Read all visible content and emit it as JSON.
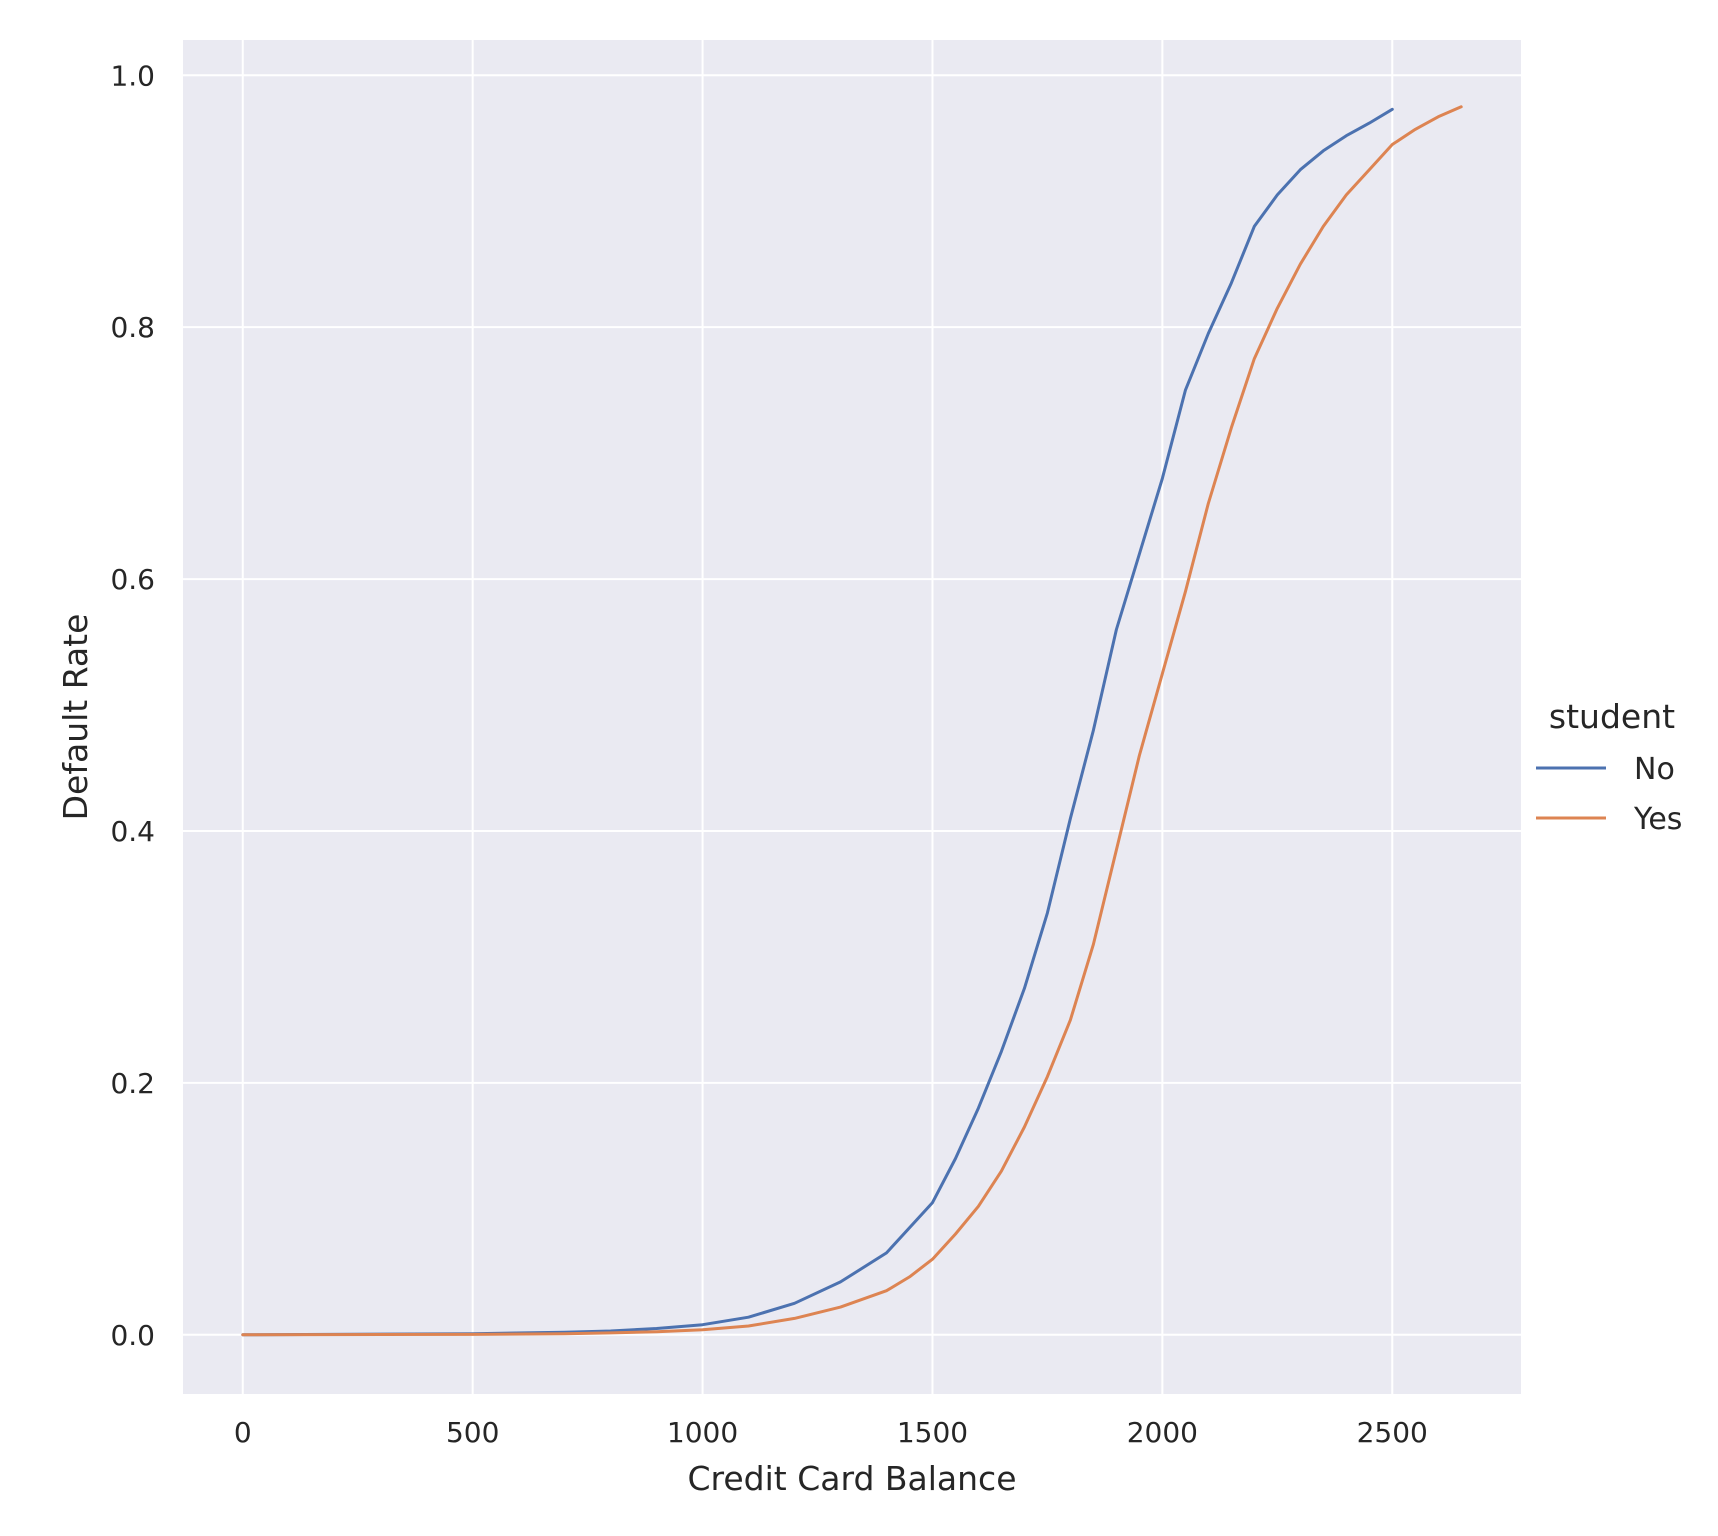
{
  "chart_data": {
    "type": "line",
    "title": "",
    "xlabel": "Credit Card Balance",
    "ylabel": "Default Rate",
    "xlim": [
      -130,
      2780
    ],
    "ylim": [
      -0.047,
      1.028
    ],
    "xticks": [
      0,
      500,
      1000,
      1500,
      2000,
      2500
    ],
    "xtick_labels": [
      "0",
      "500",
      "1000",
      "1500",
      "2000",
      "2500"
    ],
    "yticks": [
      0.0,
      0.2,
      0.4,
      0.6,
      0.8,
      1.0
    ],
    "ytick_labels": [
      "0.0",
      "0.2",
      "0.4",
      "0.6",
      "0.8",
      "1.0"
    ],
    "grid": true,
    "legend": {
      "title": "student",
      "position": "right"
    },
    "series": [
      {
        "name": "No",
        "color": "#4c72b0",
        "x": [
          0,
          500,
          700,
          800,
          900,
          1000,
          1100,
          1200,
          1300,
          1400,
          1450,
          1500,
          1550,
          1600,
          1650,
          1700,
          1750,
          1800,
          1850,
          1900,
          1950,
          2000,
          2050,
          2100,
          2150,
          2200,
          2250,
          2300,
          2350,
          2400,
          2450,
          2500
        ],
        "y": [
          0.0,
          0.0009,
          0.002,
          0.003,
          0.005,
          0.008,
          0.014,
          0.025,
          0.042,
          0.065,
          0.085,
          0.105,
          0.14,
          0.18,
          0.225,
          0.275,
          0.335,
          0.41,
          0.48,
          0.56,
          0.62,
          0.68,
          0.75,
          0.795,
          0.835,
          0.88,
          0.905,
          0.925,
          0.94,
          0.952,
          0.962,
          0.973
        ]
      },
      {
        "name": "Yes",
        "color": "#dd8452",
        "x": [
          0,
          500,
          700,
          800,
          900,
          1000,
          1100,
          1200,
          1300,
          1400,
          1450,
          1500,
          1550,
          1600,
          1650,
          1700,
          1750,
          1800,
          1850,
          1900,
          1950,
          2000,
          2050,
          2100,
          2150,
          2200,
          2250,
          2300,
          2350,
          2400,
          2450,
          2500,
          2550,
          2600,
          2650
        ],
        "y": [
          0.0,
          0.0003,
          0.0008,
          0.0015,
          0.0025,
          0.004,
          0.007,
          0.013,
          0.022,
          0.035,
          0.046,
          0.06,
          0.08,
          0.102,
          0.13,
          0.165,
          0.205,
          0.25,
          0.31,
          0.385,
          0.46,
          0.525,
          0.59,
          0.66,
          0.72,
          0.775,
          0.815,
          0.85,
          0.88,
          0.905,
          0.925,
          0.945,
          0.957,
          0.967,
          0.975
        ]
      }
    ]
  }
}
